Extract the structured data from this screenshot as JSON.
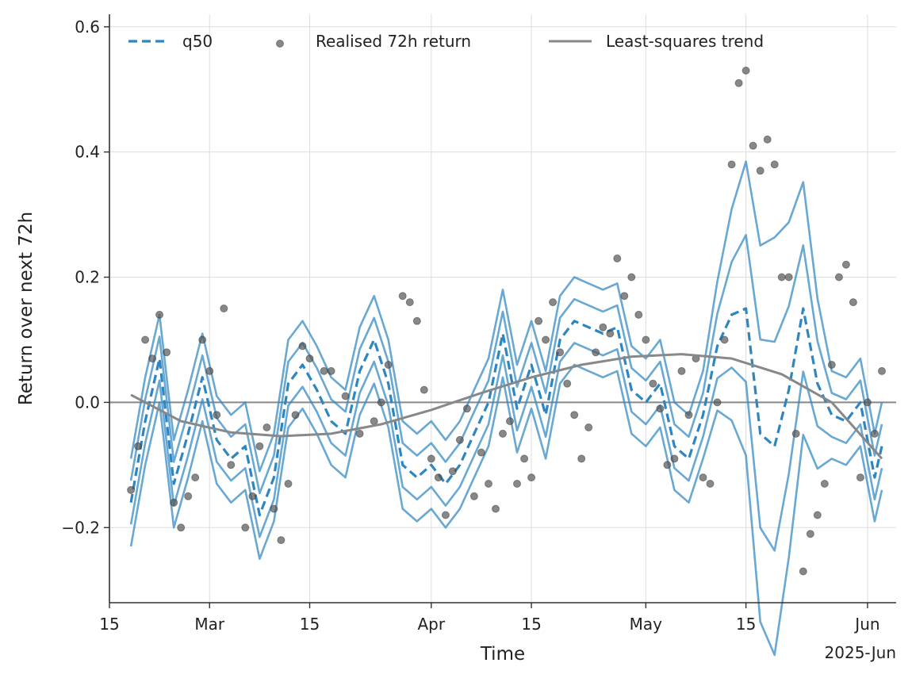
{
  "chart_data": {
    "type": "line",
    "xlabel": "Time",
    "ylabel": "Return over next 72h",
    "x_offset_label": "2025-Jun",
    "x_ticks": [
      "2025-02-15",
      "2025-03-01",
      "2025-03-15",
      "2025-04-01",
      "2025-04-15",
      "2025-05-01",
      "2025-05-15",
      "2025-06-01"
    ],
    "x_tick_labels": [
      "15",
      "Mar",
      "15",
      "Apr",
      "15",
      "May",
      "15",
      "Jun"
    ],
    "xlim": [
      "2025-02-15",
      "2025-06-05"
    ],
    "y_ticks": [
      -0.2,
      0.0,
      0.2,
      0.4,
      0.6
    ],
    "y_tick_labels": [
      "−0.2",
      "0.0",
      "0.2",
      "0.4",
      "0.6"
    ],
    "ylim": [
      -0.32,
      0.62
    ],
    "grid": true,
    "zero_line": true,
    "legend": {
      "placement": "top",
      "entries": [
        "q50",
        "Realised 72h return",
        "Least-squares trend"
      ]
    },
    "colors": {
      "quantile": "#2e86c1",
      "points": "#555555",
      "trend": "#888888",
      "zero": "#888888"
    },
    "q50": {
      "name": "q50",
      "x": [
        "2025-02-18",
        "2025-02-20",
        "2025-02-22",
        "2025-02-24",
        "2025-02-26",
        "2025-02-28",
        "2025-03-02",
        "2025-03-04",
        "2025-03-06",
        "2025-03-08",
        "2025-03-10",
        "2025-03-12",
        "2025-03-14",
        "2025-03-16",
        "2025-03-18",
        "2025-03-20",
        "2025-03-22",
        "2025-03-24",
        "2025-03-26",
        "2025-03-28",
        "2025-03-30",
        "2025-04-01",
        "2025-04-03",
        "2025-04-05",
        "2025-04-07",
        "2025-04-09",
        "2025-04-11",
        "2025-04-13",
        "2025-04-15",
        "2025-04-17",
        "2025-04-19",
        "2025-04-21",
        "2025-04-23",
        "2025-04-25",
        "2025-04-27",
        "2025-04-29",
        "2025-05-01",
        "2025-05-03",
        "2025-05-05",
        "2025-05-07",
        "2025-05-09",
        "2025-05-11",
        "2025-05-13",
        "2025-05-15",
        "2025-05-17",
        "2025-05-19",
        "2025-05-21",
        "2025-05-23",
        "2025-05-25",
        "2025-05-27",
        "2025-05-29",
        "2025-05-31",
        "2025-06-02",
        "2025-06-03"
      ],
      "values": [
        -0.16,
        -0.03,
        0.07,
        -0.13,
        -0.05,
        0.04,
        -0.06,
        -0.09,
        -0.07,
        -0.18,
        -0.12,
        0.03,
        0.06,
        0.02,
        -0.03,
        -0.05,
        0.05,
        0.1,
        0.03,
        -0.1,
        -0.12,
        -0.1,
        -0.13,
        -0.1,
        -0.05,
        0.0,
        0.11,
        -0.01,
        0.06,
        -0.02,
        0.1,
        0.13,
        0.12,
        0.11,
        0.12,
        0.02,
        0.0,
        0.03,
        -0.07,
        -0.09,
        -0.02,
        0.09,
        0.14,
        0.15,
        -0.05,
        -0.07,
        0.02,
        0.15,
        0.03,
        -0.02,
        -0.03,
        0.0,
        -0.12,
        -0.07
      ]
    },
    "quantile_bands": [
      {
        "offset": -0.07
      },
      {
        "offset": -0.035
      },
      {
        "offset": 0.035
      },
      {
        "offset": 0.07
      }
    ],
    "band_spread_growth": {
      "start": "2025-05-10",
      "end": "2025-05-27",
      "peak_extra": 0.28
    },
    "scatter": {
      "name": "Realised 72h return",
      "x": [
        "2025-02-18",
        "2025-02-19",
        "2025-02-20",
        "2025-02-21",
        "2025-02-22",
        "2025-02-23",
        "2025-02-24",
        "2025-02-25",
        "2025-02-26",
        "2025-02-27",
        "2025-02-28",
        "2025-03-01",
        "2025-03-02",
        "2025-03-03",
        "2025-03-04",
        "2025-03-06",
        "2025-03-07",
        "2025-03-08",
        "2025-03-09",
        "2025-03-10",
        "2025-03-11",
        "2025-03-12",
        "2025-03-13",
        "2025-03-14",
        "2025-03-15",
        "2025-03-17",
        "2025-03-18",
        "2025-03-20",
        "2025-03-22",
        "2025-03-24",
        "2025-03-25",
        "2025-03-26",
        "2025-03-28",
        "2025-03-29",
        "2025-03-30",
        "2025-03-31",
        "2025-04-01",
        "2025-04-02",
        "2025-04-03",
        "2025-04-04",
        "2025-04-05",
        "2025-04-06",
        "2025-04-07",
        "2025-04-08",
        "2025-04-09",
        "2025-04-10",
        "2025-04-11",
        "2025-04-12",
        "2025-04-13",
        "2025-04-14",
        "2025-04-15",
        "2025-04-16",
        "2025-04-17",
        "2025-04-18",
        "2025-04-19",
        "2025-04-20",
        "2025-04-21",
        "2025-04-22",
        "2025-04-23",
        "2025-04-24",
        "2025-04-25",
        "2025-04-26",
        "2025-04-27",
        "2025-04-28",
        "2025-04-29",
        "2025-04-30",
        "2025-05-01",
        "2025-05-02",
        "2025-05-03",
        "2025-05-04",
        "2025-05-05",
        "2025-05-06",
        "2025-05-07",
        "2025-05-08",
        "2025-05-09",
        "2025-05-10",
        "2025-05-11",
        "2025-05-12",
        "2025-05-13",
        "2025-05-14",
        "2025-05-15",
        "2025-05-16",
        "2025-05-17",
        "2025-05-18",
        "2025-05-19",
        "2025-05-20",
        "2025-05-21",
        "2025-05-22",
        "2025-05-23",
        "2025-05-24",
        "2025-05-25",
        "2025-05-26",
        "2025-05-27",
        "2025-05-28",
        "2025-05-29",
        "2025-05-30",
        "2025-05-31",
        "2025-06-01",
        "2025-06-02",
        "2025-06-03"
      ],
      "values": [
        -0.14,
        -0.07,
        0.1,
        0.07,
        0.14,
        0.08,
        -0.16,
        -0.2,
        -0.15,
        -0.12,
        0.1,
        0.05,
        -0.02,
        0.15,
        -0.1,
        -0.2,
        -0.15,
        -0.07,
        -0.04,
        -0.17,
        -0.22,
        -0.13,
        -0.02,
        0.09,
        0.07,
        0.05,
        0.05,
        0.01,
        -0.05,
        -0.03,
        0.0,
        0.06,
        0.17,
        0.16,
        0.13,
        0.02,
        -0.09,
        -0.12,
        -0.18,
        -0.11,
        -0.06,
        -0.01,
        -0.15,
        -0.08,
        -0.13,
        -0.17,
        -0.05,
        -0.03,
        -0.13,
        -0.09,
        -0.12,
        0.13,
        0.1,
        0.16,
        0.08,
        0.03,
        -0.02,
        -0.09,
        -0.04,
        0.08,
        0.12,
        0.11,
        0.23,
        0.17,
        0.2,
        0.14,
        0.1,
        0.03,
        -0.01,
        -0.1,
        -0.09,
        0.05,
        -0.02,
        0.07,
        -0.12,
        -0.13,
        0.0,
        0.1,
        0.38,
        0.51,
        0.53,
        0.41,
        0.37,
        0.42,
        0.38,
        0.2,
        0.2,
        -0.05,
        -0.27,
        -0.21,
        -0.18,
        -0.13,
        0.06,
        0.2,
        0.22,
        0.16,
        -0.12,
        0.0,
        -0.05,
        0.05
      ]
    },
    "trend": {
      "name": "Least-squares trend",
      "x": [
        "2025-02-18",
        "2025-02-25",
        "2025-03-04",
        "2025-03-11",
        "2025-03-18",
        "2025-03-25",
        "2025-04-01",
        "2025-04-08",
        "2025-04-15",
        "2025-04-22",
        "2025-04-29",
        "2025-05-06",
        "2025-05-13",
        "2025-05-20",
        "2025-05-27",
        "2025-06-03"
      ],
      "values": [
        0.012,
        -0.03,
        -0.048,
        -0.054,
        -0.05,
        -0.035,
        -0.012,
        0.015,
        0.04,
        0.06,
        0.073,
        0.077,
        0.07,
        0.045,
        0.0,
        -0.09
      ]
    }
  }
}
